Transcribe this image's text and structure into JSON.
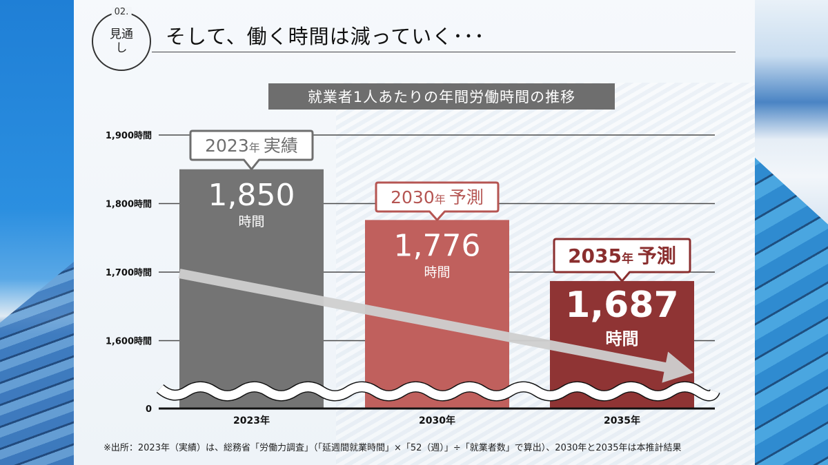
{
  "slide": {
    "section_number": "02.",
    "section_label": "見通し",
    "title": "そして、働く時間は減っていく･･･",
    "footnote": "※出所：2023年（実績）は、総務省「労働力調査」（「延週間就業時間」×「52（週）」÷「就業者数」で算出）、2030年と2035年は本推計結果"
  },
  "chart_data": {
    "type": "bar",
    "title": "就業者1人あたりの年間労働時間の推移",
    "xlabel": "",
    "ylabel": "",
    "categories": [
      "2023年",
      "2030年",
      "2035年"
    ],
    "values": [
      1850,
      1776,
      1687
    ],
    "unit": "時間",
    "y_axis_broken": true,
    "ylim": [
      1570,
      1900
    ],
    "yticks": [
      {
        "value": 1900,
        "label": "1,900時間"
      },
      {
        "value": 1800,
        "label": "1,800時間"
      },
      {
        "value": 1700,
        "label": "1,700時間"
      },
      {
        "value": 1600,
        "label": "1,600時間"
      },
      {
        "value": 0,
        "label": "0"
      }
    ],
    "grid": true,
    "bars": [
      {
        "category": "2023年",
        "value": 1850,
        "value_label": "1,850",
        "unit_label": "時間",
        "callout_year": "2023",
        "callout_suffix": "年",
        "callout_type": "実績",
        "color": "#747474",
        "callout_color": "#6e6e6e"
      },
      {
        "category": "2030年",
        "value": 1776,
        "value_label": "1,776",
        "unit_label": "時間",
        "callout_year": "2030",
        "callout_suffix": "年",
        "callout_type": "予測",
        "color": "#c0605d",
        "callout_color": "#b55552"
      },
      {
        "category": "2035年",
        "value": 1687,
        "value_label": "1,687",
        "unit_label": "時間",
        "callout_year": "2035",
        "callout_suffix": "年",
        "callout_type": "予測",
        "color": "#8f3434",
        "callout_color": "#8a2e2e"
      }
    ],
    "trend_arrow": {
      "from": "2023年",
      "to": "2035年",
      "direction": "down",
      "color": "#cfcfcf"
    }
  }
}
